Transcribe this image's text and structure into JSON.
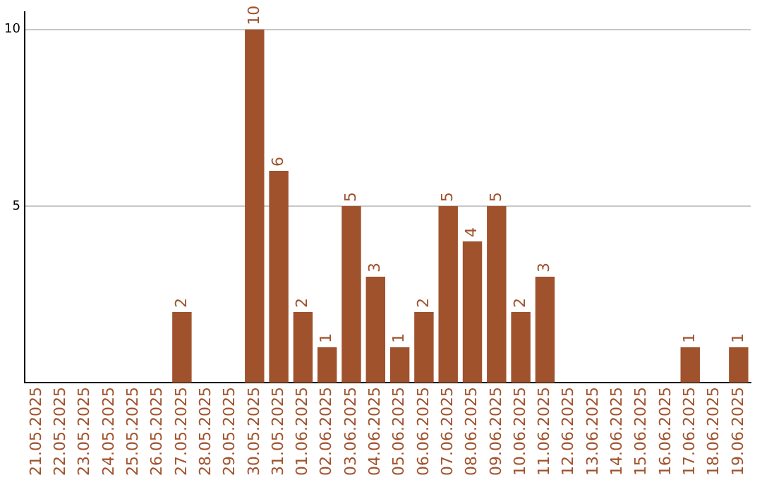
{
  "chart_data": {
    "type": "bar",
    "categories": [
      "21.05.2025",
      "22.05.2025",
      "23.05.2025",
      "24.05.2025",
      "25.05.2025",
      "26.05.2025",
      "27.05.2025",
      "28.05.2025",
      "29.05.2025",
      "30.05.2025",
      "31.05.2025",
      "01.06.2025",
      "02.06.2025",
      "03.06.2025",
      "04.06.2025",
      "05.06.2025",
      "06.06.2025",
      "07.06.2025",
      "08.06.2025",
      "09.06.2025",
      "10.06.2025",
      "11.06.2025",
      "12.06.2025",
      "13.06.2025",
      "14.06.2025",
      "15.06.2025",
      "16.06.2025",
      "17.06.2025",
      "18.06.2025",
      "19.06.2025"
    ],
    "values": [
      0,
      0,
      0,
      0,
      0,
      0,
      2,
      0,
      0,
      10,
      6,
      2,
      1,
      5,
      3,
      1,
      2,
      5,
      4,
      5,
      2,
      3,
      0,
      0,
      0,
      0,
      0,
      1,
      0,
      1
    ],
    "value_labels": [
      null,
      null,
      null,
      null,
      null,
      null,
      "2",
      null,
      null,
      "10",
      "6",
      "2",
      "1",
      "5",
      "3",
      "1",
      "2",
      "5",
      "4",
      "5",
      "2",
      "3",
      null,
      null,
      null,
      null,
      null,
      "1",
      null,
      "1"
    ],
    "color": "#a0522d",
    "ylim": [
      0,
      10.5
    ],
    "yticks": [
      5,
      10
    ],
    "grid": "y",
    "legend": false
  }
}
